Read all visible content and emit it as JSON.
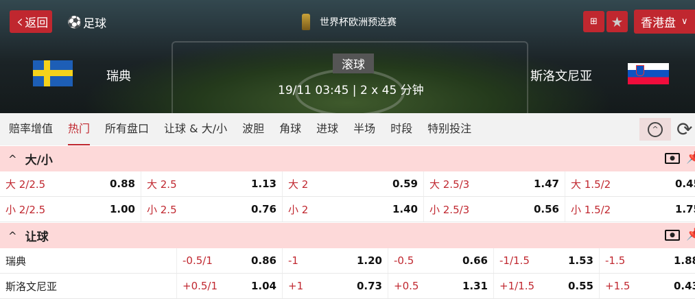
{
  "header": {
    "back_label": "返回",
    "sport_label": "足球",
    "competition": "世界杯欧洲预选赛",
    "odds_format": "香港盘",
    "status": "滚球",
    "datetime": "19/11 03:45",
    "duration": "2 x 45 分钟",
    "home": "瑞典",
    "away": "斯洛文尼亚",
    "accent": "#c0272f"
  },
  "tabs": [
    "赔率增值",
    "热门",
    "所有盘口",
    "让球 & 大/小",
    "波胆",
    "角球",
    "进球",
    "半场",
    "时段",
    "特别投注"
  ],
  "active_tab": 1,
  "over_under": {
    "title": "大/小",
    "rows": [
      [
        [
          "大 2/2.5",
          "0.88"
        ],
        [
          "大 2.5",
          "1.13"
        ],
        [
          "大 2",
          "0.59"
        ],
        [
          "大 2.5/3",
          "1.47"
        ],
        [
          "大 1.5/2",
          "0.45"
        ]
      ],
      [
        [
          "小 2/2.5",
          "1.00"
        ],
        [
          "小 2.5",
          "0.76"
        ],
        [
          "小 2",
          "1.40"
        ],
        [
          "小 2.5/3",
          "0.56"
        ],
        [
          "小 1.5/2",
          "1.75"
        ]
      ]
    ]
  },
  "handicap": {
    "title": "让球",
    "rows": [
      {
        "team": "瑞典",
        "cells": [
          [
            "-0.5/1",
            "0.86"
          ],
          [
            "-1",
            "1.20"
          ],
          [
            "-0.5",
            "0.66"
          ],
          [
            "-1/1.5",
            "1.53"
          ],
          [
            "-1.5",
            "1.88"
          ]
        ]
      },
      {
        "team": "斯洛文尼亚",
        "cells": [
          [
            "+0.5/1",
            "1.04"
          ],
          [
            "+1",
            "0.73"
          ],
          [
            "+0.5",
            "1.31"
          ],
          [
            "+1/1.5",
            "0.55"
          ],
          [
            "+1.5",
            "0.43"
          ]
        ]
      }
    ]
  }
}
